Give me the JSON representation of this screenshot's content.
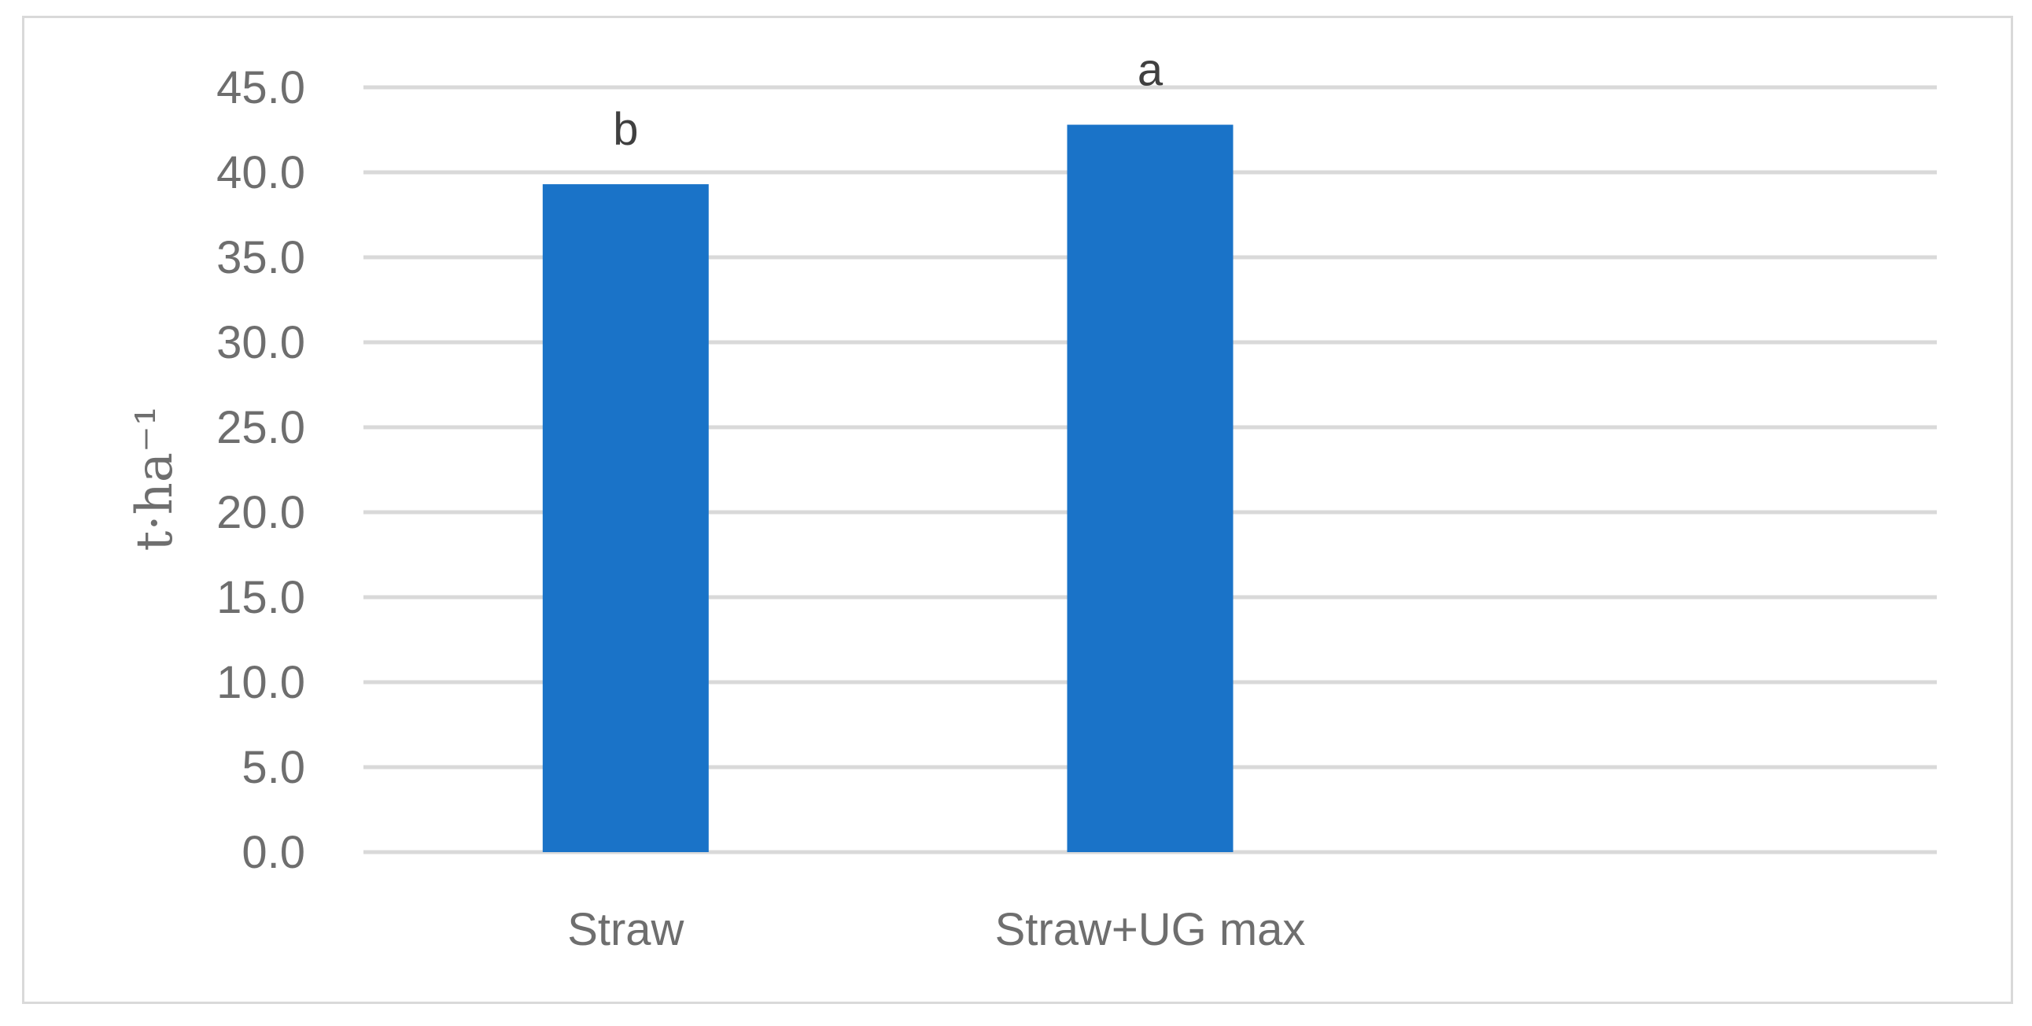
{
  "chart_data": {
    "type": "bar",
    "categories": [
      "Straw",
      "Straw+UG max"
    ],
    "values": [
      39.3,
      42.8
    ],
    "data_labels": [
      "b",
      "a"
    ],
    "title": "",
    "xlabel": "",
    "ylabel": "t·ha⁻¹",
    "ylim": [
      0,
      45
    ],
    "ytick_step": 5,
    "ytick_labels": [
      "0.0",
      "5.0",
      "10.0",
      "15.0",
      "20.0",
      "25.0",
      "30.0",
      "35.0",
      "40.0",
      "45.0"
    ],
    "grid": true,
    "legend": "none",
    "colors": {
      "bar": "#1a73c8",
      "grid": "#d9d9d9",
      "axis_text": "#6e6e6e",
      "label_text": "#404040",
      "frame": "#d9d9d9"
    }
  }
}
